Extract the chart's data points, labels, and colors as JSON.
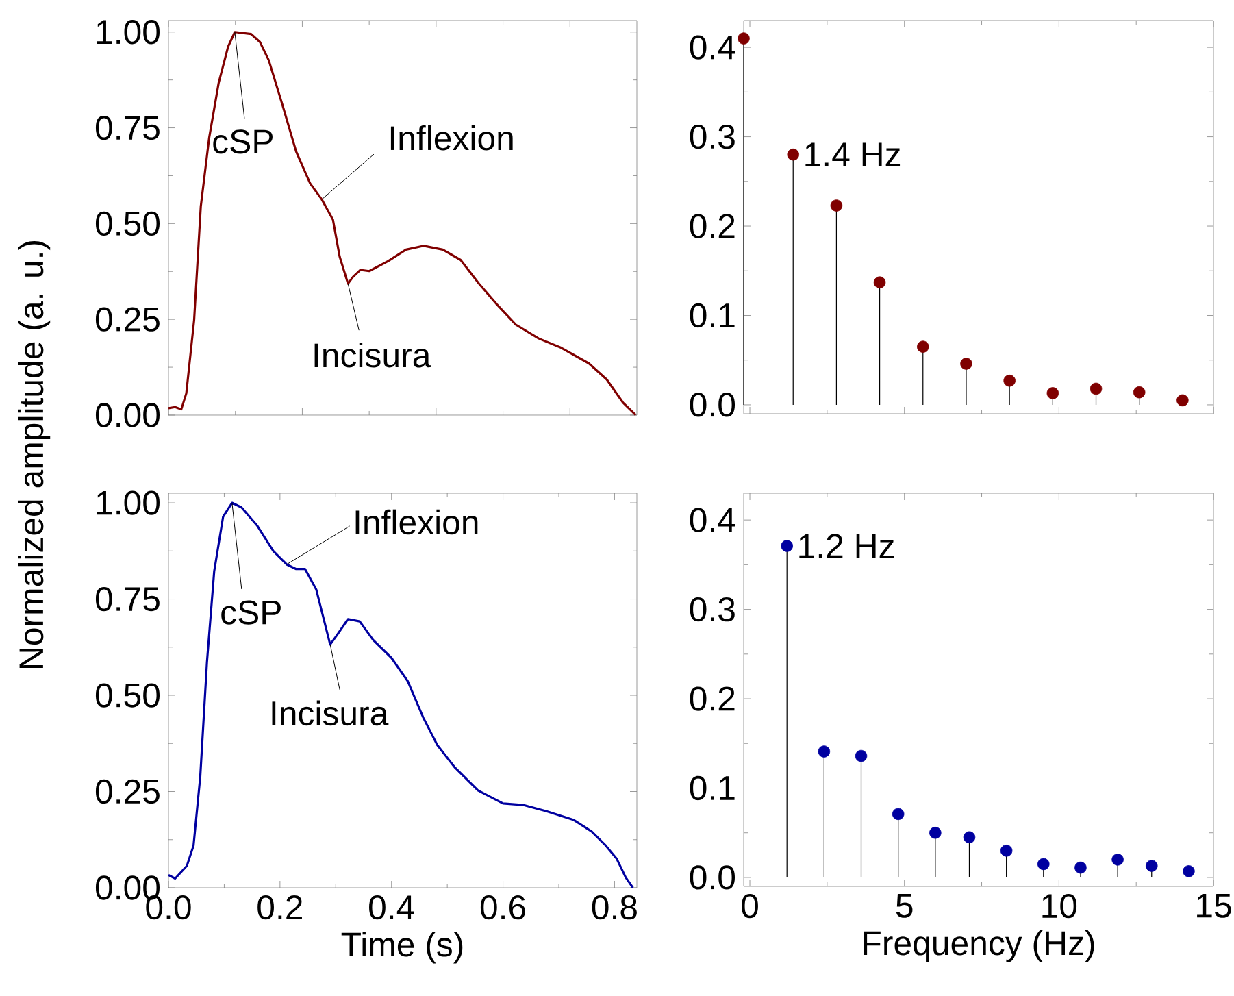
{
  "chart_data": [
    {
      "type": "line",
      "color": "#800000",
      "ylabel": "Normalized amplitude (a. u.)",
      "xlim": [
        0,
        0.84
      ],
      "ylim": [
        0,
        1.03
      ],
      "xticks": [
        {
          "value": 0,
          "label": null
        },
        {
          "value": 0.24,
          "label": null
        },
        {
          "value": 0.48,
          "label": null
        },
        {
          "value": 0.72,
          "label": null
        }
      ],
      "yticks": [
        {
          "value": 0,
          "label": "0.00"
        },
        {
          "value": 0.25,
          "label": "0.25"
        },
        {
          "value": 0.5,
          "label": "0.50"
        },
        {
          "value": 0.75,
          "label": "0.75"
        },
        {
          "value": 1,
          "label": "1.00"
        }
      ],
      "tick_labels": "y",
      "x": [
        0,
        0.012,
        0.023,
        0.032,
        0.046,
        0.058,
        0.073,
        0.09,
        0.107,
        0.119,
        0.148,
        0.164,
        0.18,
        0.205,
        0.229,
        0.254,
        0.275,
        0.295,
        0.307,
        0.322,
        0.331,
        0.344,
        0.36,
        0.394,
        0.426,
        0.458,
        0.492,
        0.524,
        0.557,
        0.589,
        0.623,
        0.664,
        0.704,
        0.754,
        0.786,
        0.815,
        0.838
      ],
      "values": [
        0.018,
        0.021,
        0.015,
        0.057,
        0.248,
        0.545,
        0.724,
        0.867,
        0.962,
        1.0,
        0.995,
        0.974,
        0.926,
        0.807,
        0.688,
        0.605,
        0.563,
        0.51,
        0.414,
        0.343,
        0.361,
        0.379,
        0.376,
        0.402,
        0.432,
        0.442,
        0.432,
        0.405,
        0.343,
        0.289,
        0.236,
        0.2,
        0.176,
        0.135,
        0.093,
        0.033,
        0
      ],
      "annotations": [
        {
          "text": "cSP",
          "x": 0.119,
          "y": 1.0
        },
        {
          "text": "Inflexion",
          "x": 0.275,
          "y": 0.563
        },
        {
          "text": "Incisura",
          "x": 0.322,
          "y": 0.343
        }
      ]
    },
    {
      "type": "lollipop",
      "color": "#800000",
      "marker": "circle",
      "xlim": [
        -0.2,
        15
      ],
      "ylim": [
        -0.01,
        0.43
      ],
      "xticks": [
        0,
        5,
        10,
        15
      ],
      "yticks": [
        {
          "value": 0,
          "label": "0.0"
        },
        {
          "value": 0.1,
          "label": "0.1"
        },
        {
          "value": 0.2,
          "label": "0.2"
        },
        {
          "value": 0.3,
          "label": "0.3"
        },
        {
          "value": 0.4,
          "label": "0.4"
        }
      ],
      "tick_labels": "y",
      "x": [
        -0.2,
        1.4,
        2.8,
        4.2,
        5.6,
        7.0,
        8.4,
        9.8,
        11.2,
        12.6,
        14.0
      ],
      "values": [
        0.41,
        0.28,
        0.223,
        0.137,
        0.065,
        0.046,
        0.027,
        0.013,
        0.018,
        0.014,
        0.005
      ],
      "annotations": [
        {
          "text": "1.4 Hz",
          "x": 1.4,
          "y": 0.28
        }
      ]
    },
    {
      "type": "line",
      "color": "#0000a0",
      "xlabel": "Time (s)",
      "xlim": [
        0,
        0.84
      ],
      "ylim": [
        0,
        1.025
      ],
      "xticks": [
        {
          "value": 0,
          "label": "0.0"
        },
        {
          "value": 0.2,
          "label": "0.2"
        },
        {
          "value": 0.4,
          "label": "0.4"
        },
        {
          "value": 0.6,
          "label": "0.6"
        },
        {
          "value": 0.8,
          "label": "0.8"
        }
      ],
      "yticks": [
        {
          "value": 0,
          "label": "0.00"
        },
        {
          "value": 0.25,
          "label": "0.25"
        },
        {
          "value": 0.5,
          "label": "0.50"
        },
        {
          "value": 0.75,
          "label": "0.75"
        },
        {
          "value": 1,
          "label": "1.00"
        }
      ],
      "x": [
        0,
        0.012,
        0.033,
        0.045,
        0.057,
        0.069,
        0.082,
        0.098,
        0.114,
        0.131,
        0.159,
        0.188,
        0.212,
        0.229,
        0.245,
        0.265,
        0.29,
        0.302,
        0.322,
        0.343,
        0.367,
        0.4,
        0.429,
        0.457,
        0.482,
        0.514,
        0.555,
        0.6,
        0.637,
        0.678,
        0.727,
        0.759,
        0.784,
        0.804,
        0.82,
        0.833
      ],
      "values": [
        0.033,
        0.024,
        0.057,
        0.11,
        0.288,
        0.585,
        0.822,
        0.964,
        1.0,
        0.988,
        0.941,
        0.875,
        0.84,
        0.828,
        0.828,
        0.775,
        0.632,
        0.656,
        0.698,
        0.692,
        0.644,
        0.597,
        0.537,
        0.442,
        0.371,
        0.312,
        0.253,
        0.219,
        0.215,
        0.199,
        0.176,
        0.146,
        0.11,
        0.075,
        0.027,
        0
      ],
      "annotations": [
        {
          "text": "cSP",
          "x": 0.114,
          "y": 1.0
        },
        {
          "text": "Inflexion",
          "x": 0.212,
          "y": 0.84
        },
        {
          "text": "Incisura",
          "x": 0.29,
          "y": 0.632
        }
      ]
    },
    {
      "type": "lollipop",
      "color": "#0000a0",
      "marker": "circle",
      "xlabel": "Frequency (Hz)",
      "xlim": [
        -0.2,
        15
      ],
      "ylim": [
        -0.01,
        0.43
      ],
      "xticks": [
        0,
        5,
        10,
        15
      ],
      "yticks": [
        {
          "value": 0,
          "label": "0.0"
        },
        {
          "value": 0.1,
          "label": "0.1"
        },
        {
          "value": 0.2,
          "label": "0.2"
        },
        {
          "value": 0.3,
          "label": "0.3"
        },
        {
          "value": 0.4,
          "label": "0.4"
        }
      ],
      "x": [
        1.2,
        2.4,
        3.6,
        4.8,
        6.0,
        7.1,
        8.3,
        9.5,
        10.7,
        11.9,
        13.0,
        14.2
      ],
      "values": [
        0.371,
        0.141,
        0.136,
        0.071,
        0.05,
        0.045,
        0.03,
        0.015,
        0.011,
        0.02,
        0.013,
        0.007
      ],
      "annotations": [
        {
          "text": "1.2 Hz",
          "x": 1.2,
          "y": 0.371
        }
      ]
    }
  ]
}
